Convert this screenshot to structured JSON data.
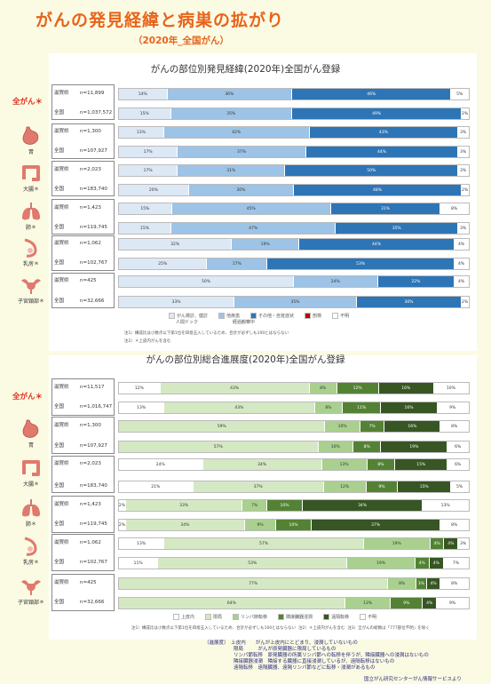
{
  "page": {
    "title": "がんの発見経緯と病巣の拡がり",
    "subtitle": "（2020年_全国がん）"
  },
  "organs": [
    {
      "name": "全がん＊",
      "icon": "all-cancer",
      "rows": [
        {
          "pref": "滋賀県",
          "n": "n=11,899"
        },
        {
          "pref": "全国",
          "n": "n=1,037,572"
        }
      ]
    },
    {
      "name": "胃",
      "icon": "stomach-icon",
      "rows": [
        {
          "pref": "滋賀県",
          "n": "n=1,300"
        },
        {
          "pref": "全国",
          "n": "n=107,927"
        }
      ]
    },
    {
      "name": "大腸＊",
      "icon": "colon-icon",
      "rows": [
        {
          "pref": "滋賀県",
          "n": "n=2,023"
        },
        {
          "pref": "全国",
          "n": "n=183,740"
        }
      ]
    },
    {
      "name": "肺＊",
      "icon": "lung-icon",
      "rows": [
        {
          "pref": "滋賀県",
          "n": "n=1,423"
        },
        {
          "pref": "全国",
          "n": "n=119,745"
        }
      ]
    },
    {
      "name": "乳房＊",
      "icon": "breast-icon",
      "rows": [
        {
          "pref": "滋賀県",
          "n": "n=1,062"
        },
        {
          "pref": "全国",
          "n": "n=102,767"
        }
      ]
    },
    {
      "name": "子宮頸部＊",
      "icon": "uterus-icon",
      "rows": [
        {
          "pref": "滋賀県",
          "n": "n=425"
        },
        {
          "pref": "全国",
          "n": "n=32,666"
        }
      ]
    }
  ],
  "organs2": [
    {
      "name": "全がん＊",
      "icon": "all-cancer",
      "rows": [
        {
          "pref": "滋賀県",
          "n": "n=11,517"
        },
        {
          "pref": "全国",
          "n": "n=1,016,747"
        }
      ]
    },
    {
      "name": "胃",
      "icon": "stomach-icon",
      "rows": [
        {
          "pref": "滋賀県",
          "n": "n=1,300"
        },
        {
          "pref": "全国",
          "n": "n=107,927"
        }
      ]
    },
    {
      "name": "大腸＊",
      "icon": "colon-icon",
      "rows": [
        {
          "pref": "滋賀県",
          "n": "n=2,023"
        },
        {
          "pref": "全国",
          "n": "n=183,740"
        }
      ]
    },
    {
      "name": "肺＊",
      "icon": "lung-icon",
      "rows": [
        {
          "pref": "滋賀県",
          "n": "n=1,423"
        },
        {
          "pref": "全国",
          "n": "n=119,745"
        }
      ]
    },
    {
      "name": "乳房＊",
      "icon": "breast-icon",
      "rows": [
        {
          "pref": "滋賀県",
          "n": "n=1,062"
        },
        {
          "pref": "全国",
          "n": "n=102,767"
        }
      ]
    },
    {
      "name": "子宮頸部＊",
      "icon": "uterus-icon",
      "rows": [
        {
          "pref": "滋賀県",
          "n": "n=425"
        },
        {
          "pref": "全国",
          "n": "n=32,666"
        }
      ]
    }
  ],
  "chart_data": [
    {
      "type": "bar",
      "orientation": "horizontal-stacked-100",
      "title": "がんの部位別発見経緯(2020年)全国がん登録",
      "categories": [
        "滋賀県 全がん",
        "全国 全がん",
        "滋賀県 胃",
        "全国 胃",
        "滋賀県 大腸",
        "全国 大腸",
        "滋賀県 肺",
        "全国 肺",
        "滋賀県 乳房",
        "全国 乳房",
        "滋賀県 子宮頸部",
        "全国 子宮頸部"
      ],
      "series": [
        {
          "name": "がん検診、健診、人間ドック",
          "color": "#dde8f5",
          "values": [
            14,
            15,
            13,
            17,
            17,
            20,
            15,
            15,
            32,
            25,
            50,
            33
          ]
        },
        {
          "name": "他疾患 経過観察中",
          "color": "#9dc3e6",
          "values": [
            36,
            35,
            42,
            37,
            31,
            30,
            45,
            47,
            19,
            17,
            24,
            35
          ]
        },
        {
          "name": "その他・自覚症状",
          "color": "#2e75b6",
          "values": [
            46,
            49,
            43,
            44,
            50,
            48,
            31,
            35,
            44,
            53,
            22,
            30
          ]
        },
        {
          "name": "剖検",
          "color": "#c00000",
          "values": [
            0,
            0,
            0,
            0,
            0,
            0,
            0,
            0,
            0,
            0,
            0,
            0
          ]
        },
        {
          "name": "不明",
          "color": "#ffffff",
          "values": [
            5,
            2,
            3,
            3,
            3,
            2,
            8,
            3,
            4,
            4,
            4,
            2
          ]
        }
      ],
      "legend_position": "bottom",
      "legend_extra": [
        "人間ドック",
        "経過観察中"
      ],
      "notes": [
        "注1）構成比は小数点以下第1位を四捨五入しているため、合計が必ずしも100とはならない",
        "注2）＊上皮内がんを含む"
      ]
    },
    {
      "type": "bar",
      "orientation": "horizontal-stacked-100",
      "title": "がんの部位別総合進展度(2020年)全国がん登録",
      "categories": [
        "滋賀県 全がん",
        "全国 全がん",
        "滋賀県 胃",
        "全国 胃",
        "滋賀県 大腸",
        "全国 大腸",
        "滋賀県 肺",
        "全国 肺",
        "滋賀県 乳房",
        "全国 乳房",
        "滋賀県 子宮頸部",
        "全国 子宮頸部"
      ],
      "series": [
        {
          "name": "上皮内",
          "color": "#ffffff",
          "values": [
            12,
            13,
            0,
            0,
            24,
            21,
            2,
            2,
            13,
            11,
            0,
            0
          ]
        },
        {
          "name": "限局",
          "color": "#d5e8c4",
          "values": [
            43,
            43,
            59,
            57,
            34,
            37,
            33,
            34,
            57,
            53,
            77,
            64
          ]
        },
        {
          "name": "リンパ節転移",
          "color": "#a9d08e",
          "values": [
            8,
            8,
            10,
            10,
            13,
            12,
            7,
            9,
            19,
            19,
            8,
            13
          ]
        },
        {
          "name": "隣接臓器浸潤",
          "color": "#548235",
          "values": [
            12,
            11,
            7,
            8,
            8,
            9,
            10,
            10,
            4,
            4,
            3,
            9
          ]
        },
        {
          "name": "遠隔転移",
          "color": "#375623",
          "values": [
            16,
            16,
            16,
            19,
            15,
            15,
            34,
            37,
            4,
            4,
            4,
            4
          ]
        },
        {
          "name": "不明",
          "color": "#ffffff",
          "values": [
            10,
            9,
            8,
            6,
            6,
            5,
            13,
            8,
            3,
            7,
            8,
            9
          ]
        }
      ],
      "legend_position": "bottom",
      "notes": [
        "注1）構成比は小数点以下第1位を四捨五入しているため、合計が必ずしも100とはならない",
        "注2）＊上皮内がんを含む",
        "注3）全がんの総数は「777部位不明」を除く"
      ]
    }
  ],
  "panel1": {
    "legend": [
      "がん検診、健診",
      "他疾患",
      "その他・自覚症状",
      "剖検",
      "不明"
    ],
    "legend_sub": [
      "人間ドック",
      "経過観察中"
    ]
  },
  "panel2": {
    "legend": [
      "上皮内",
      "限局",
      "リンパ節転移",
      "隣接臓器浸潤",
      "遠隔転移",
      "不明"
    ]
  },
  "footer": {
    "lines": [
      "（進展度）　上皮内　　がんが上皮内にとどまり、浸潤していないもの",
      "　　　　　　限局　　　がんが原発臓器に限局しているもの",
      "　　　　　　リンパ節転移　原発臓器の所属リンパ節への転移を伴うが、隣接臓器への浸潤はないもの",
      "　　　　　　隣接臓器浸潤　隣接する臓器に直接浸潤しているが、遠隔転移はないもの",
      "　　　　　　遠隔転移　遠隔臓器、遠隔リンパ節などに転移・浸潤があるもの"
    ],
    "source": "国立がん研究センターがん情報サービスより"
  }
}
